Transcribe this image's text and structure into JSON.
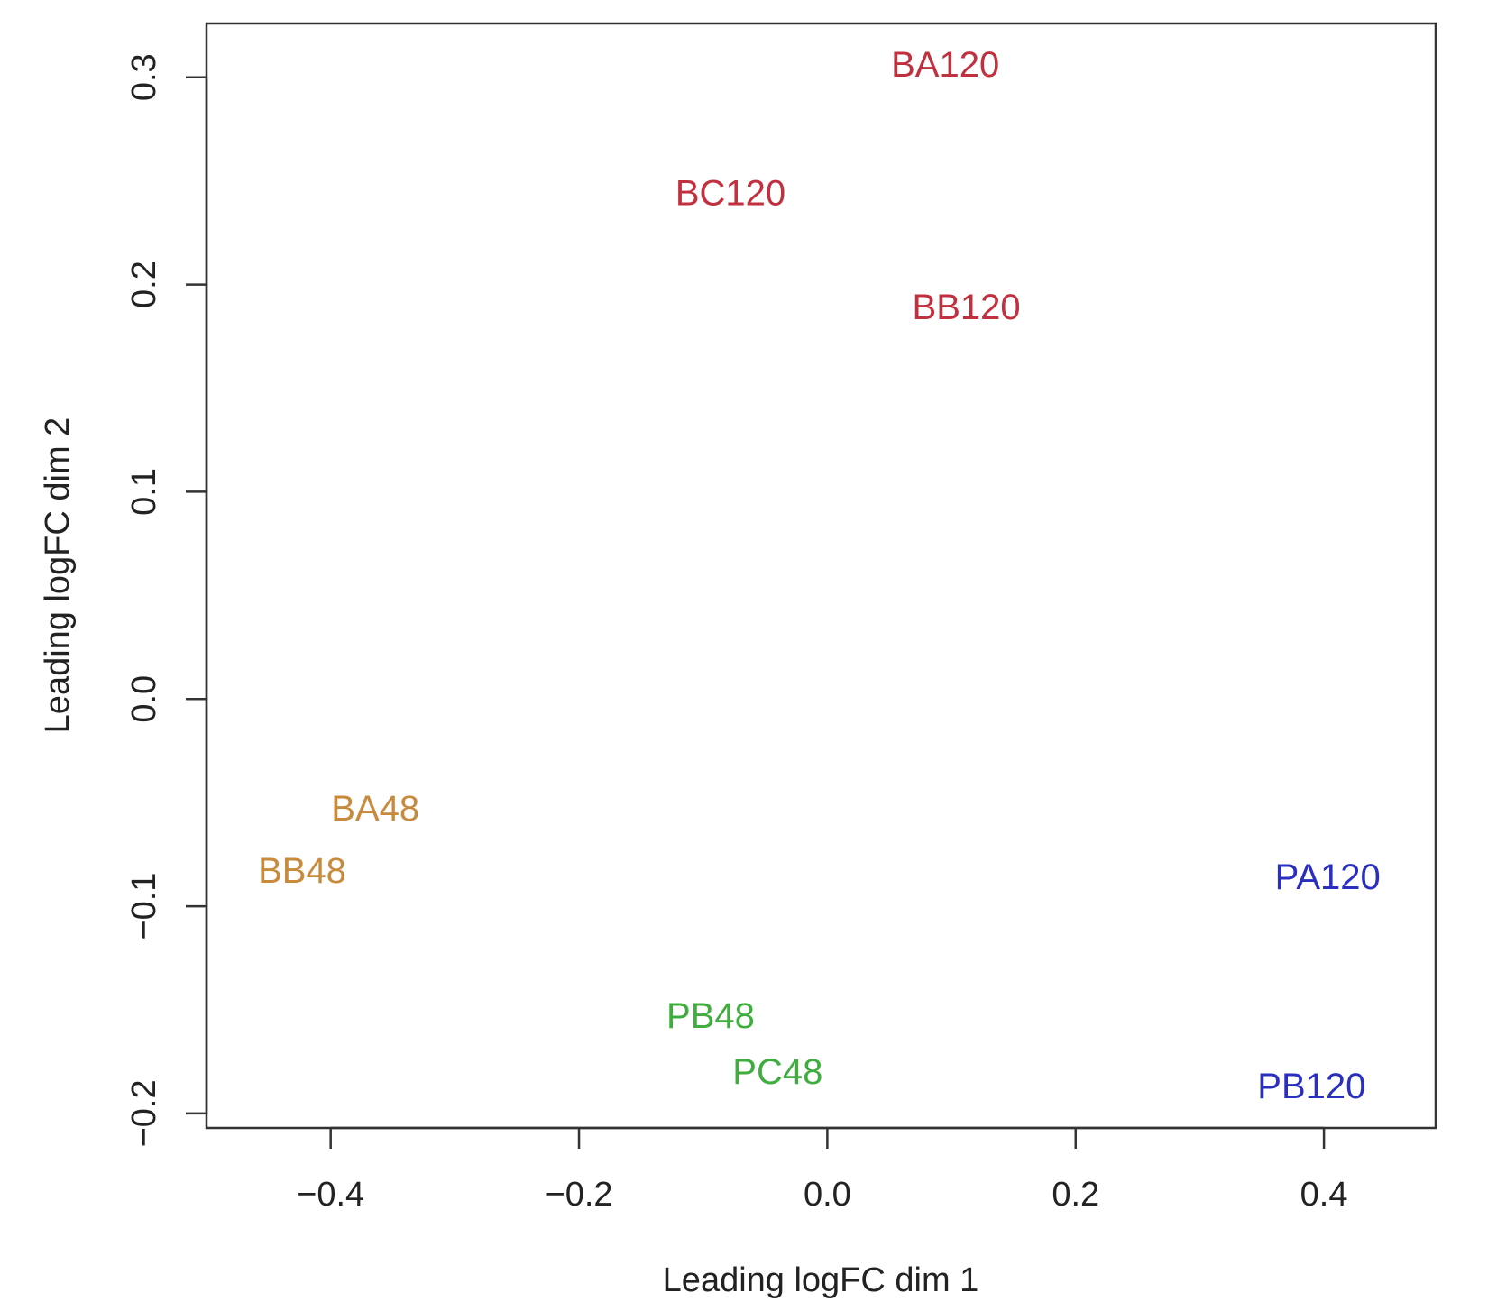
{
  "chart_data": {
    "type": "scatter",
    "title": "",
    "xlabel": "Leading logFC dim 1",
    "ylabel": "Leading logFC dim 2",
    "xlim": [
      -0.5,
      0.49
    ],
    "ylim": [
      -0.207,
      0.326
    ],
    "x_ticks": [
      -0.4,
      -0.2,
      0.0,
      0.2,
      0.4
    ],
    "x_tick_labels": [
      "−0.4",
      "−0.2",
      "0.0",
      "0.2",
      "0.4"
    ],
    "y_ticks": [
      -0.2,
      -0.1,
      0.0,
      0.1,
      0.2,
      0.3
    ],
    "y_tick_labels": [
      "−0.2",
      "−0.1",
      "0.0",
      "0.1",
      "0.2",
      "0.3"
    ],
    "grid": false,
    "legend": "none",
    "markers": "text labels",
    "groups": [
      {
        "color": "#c0303e",
        "points": [
          {
            "label": "BA120",
            "x": 0.095,
            "y": 0.306
          },
          {
            "label": "BC120",
            "x": -0.078,
            "y": 0.244
          },
          {
            "label": "BB120",
            "x": 0.112,
            "y": 0.189
          }
        ]
      },
      {
        "color": "#c88a3c",
        "points": [
          {
            "label": "BA48",
            "x": -0.364,
            "y": -0.053
          },
          {
            "label": "BB48",
            "x": -0.423,
            "y": -0.083
          }
        ]
      },
      {
        "color": "#3fae3f",
        "points": [
          {
            "label": "PB48",
            "x": -0.094,
            "y": -0.153
          },
          {
            "label": "PC48",
            "x": -0.04,
            "y": -0.18
          }
        ]
      },
      {
        "color": "#2a2fc0",
        "points": [
          {
            "label": "PA120",
            "x": 0.403,
            "y": -0.086
          },
          {
            "label": "PB120",
            "x": 0.39,
            "y": -0.187
          }
        ]
      }
    ]
  }
}
